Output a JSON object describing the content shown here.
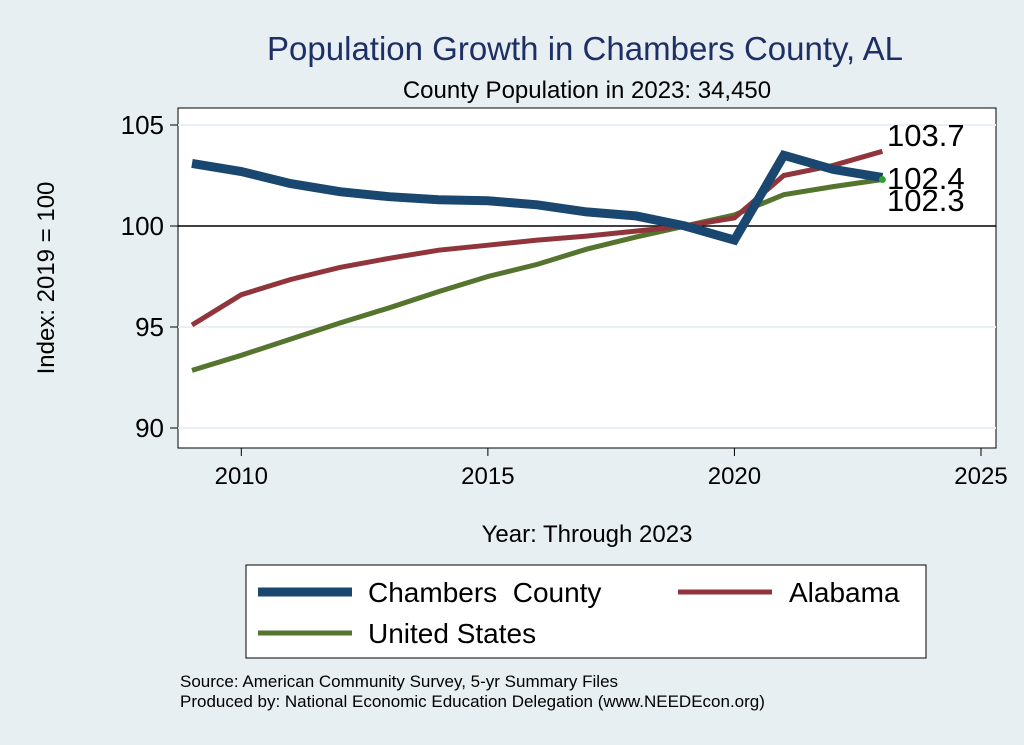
{
  "chart_data": {
    "type": "line",
    "title": "Population Growth in Chambers County, AL",
    "subtitle": "County Population in 2023: 34,450",
    "xlabel": "Year: Through 2023",
    "ylabel": "Index: 2019 = 100",
    "xlim": [
      2009,
      2025
    ],
    "ylim": [
      89.2,
      106
    ],
    "x_ticks": [
      2010,
      2015,
      2020,
      2025
    ],
    "y_ticks": [
      90,
      95,
      100,
      105
    ],
    "reference_line": 100,
    "grid": true,
    "x": [
      2009,
      2010,
      2011,
      2012,
      2013,
      2014,
      2015,
      2016,
      2017,
      2018,
      2019,
      2020,
      2021,
      2022,
      2023
    ],
    "series": [
      {
        "name": "Chambers  County",
        "color": "#1a476f",
        "values": [
          103.1,
          102.7,
          102.1,
          101.7,
          101.45,
          101.3,
          101.25,
          101.05,
          100.7,
          100.5,
          100.0,
          99.3,
          103.5,
          102.8,
          102.4
        ]
      },
      {
        "name": "Alabama",
        "color": "#90353b",
        "values": [
          95.1,
          96.6,
          97.35,
          97.95,
          98.4,
          98.8,
          99.05,
          99.3,
          99.5,
          99.75,
          100.0,
          100.4,
          102.5,
          103.0,
          103.7
        ]
      },
      {
        "name": "United States",
        "color": "#55752f",
        "values": [
          92.85,
          93.6,
          94.4,
          95.2,
          95.95,
          96.75,
          97.5,
          98.1,
          98.85,
          99.45,
          100.0,
          100.55,
          101.55,
          101.95,
          102.3
        ]
      }
    ],
    "end_labels": [
      "103.7",
      "102.4",
      "102.3"
    ],
    "legend": {
      "placement": "bottom",
      "entries": [
        "Chambers  County",
        "Alabama",
        "United States"
      ]
    }
  },
  "notes": {
    "source": "Source: American Community Survey, 5-yr Summary Files",
    "produced_by": "Produced by: National Economic Education Delegation (www.NEEDEcon.org)"
  }
}
